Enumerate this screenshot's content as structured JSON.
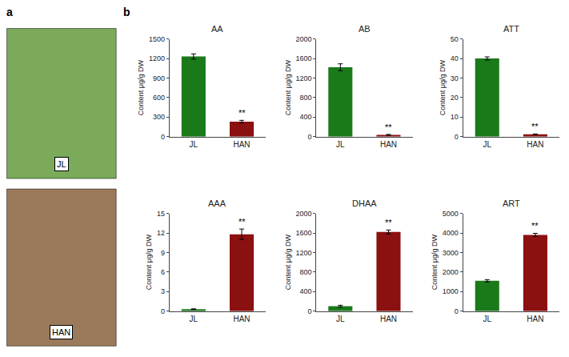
{
  "chart_data": [
    {
      "type": "bar",
      "title": "AA",
      "categories": [
        "JL",
        "HAN"
      ],
      "values": [
        1230,
        230
      ],
      "errors": [
        40,
        20
      ],
      "colors": [
        "#1a7a1a",
        "#8b1010"
      ],
      "ylabel": "Content μg/g DW",
      "ylim": [
        0,
        1500
      ],
      "yticks": [
        0,
        300,
        600,
        900,
        1200,
        1500
      ],
      "grid": false,
      "annotations": [
        {
          "x": "HAN",
          "text": "**"
        }
      ]
    },
    {
      "type": "bar",
      "title": "AB",
      "categories": [
        "JL",
        "HAN"
      ],
      "values": [
        1420,
        35
      ],
      "errors": [
        70,
        10
      ],
      "colors": [
        "#1a7a1a",
        "#8b1010"
      ],
      "ylabel": "Content μg/g DW",
      "ylim": [
        0,
        2000
      ],
      "yticks": [
        0,
        400,
        800,
        1200,
        1600,
        2000
      ],
      "grid": false,
      "annotations": [
        {
          "x": "HAN",
          "text": "**"
        }
      ]
    },
    {
      "type": "bar",
      "title": "ATT",
      "categories": [
        "JL",
        "HAN"
      ],
      "values": [
        40,
        1.2
      ],
      "errors": [
        0.8,
        0.15
      ],
      "colors": [
        "#1a7a1a",
        "#8b1010"
      ],
      "ylabel": "Content μg/g DW",
      "ylim": [
        0,
        50
      ],
      "yticks": [
        0,
        10,
        20,
        30,
        40,
        50
      ],
      "grid": false,
      "annotations": [
        {
          "x": "HAN",
          "text": "**"
        }
      ]
    },
    {
      "type": "bar",
      "title": "AAA",
      "categories": [
        "JL",
        "HAN"
      ],
      "values": [
        0.3,
        11.8
      ],
      "errors": [
        0.05,
        0.8
      ],
      "colors": [
        "#1a7a1a",
        "#8b1010"
      ],
      "ylabel": "Content μg/g DW",
      "ylim": [
        0,
        15
      ],
      "yticks": [
        0,
        3,
        6,
        9,
        12,
        15
      ],
      "grid": false,
      "annotations": [
        {
          "x": "HAN",
          "text": "**"
        }
      ]
    },
    {
      "type": "bar",
      "title": "DHAA",
      "categories": [
        "JL",
        "HAN"
      ],
      "values": [
        100,
        1620
      ],
      "errors": [
        20,
        40
      ],
      "colors": [
        "#1a7a1a",
        "#8b1010"
      ],
      "ylabel": "Content μg/g DW",
      "ylim": [
        0,
        2000
      ],
      "yticks": [
        0,
        400,
        800,
        1200,
        1600,
        2000
      ],
      "grid": false,
      "annotations": [
        {
          "x": "HAN",
          "text": "**"
        }
      ]
    },
    {
      "type": "bar",
      "title": "ART",
      "categories": [
        "JL",
        "HAN"
      ],
      "values": [
        1550,
        3900
      ],
      "errors": [
        60,
        80
      ],
      "colors": [
        "#1a7a1a",
        "#8b1010"
      ],
      "ylabel": "Content μg/g DW",
      "ylim": [
        0,
        5000
      ],
      "yticks": [
        0,
        1000,
        2000,
        3000,
        4000,
        5000
      ],
      "grid": false,
      "annotations": [
        {
          "x": "HAN",
          "text": "**"
        }
      ]
    }
  ],
  "annotations": [
    {
      "text": "a"
    },
    {
      "text": "b"
    },
    {
      "text": "JL",
      "color": "#7aaa5a"
    },
    {
      "text": "HAN",
      "color": "#9a7a5a"
    }
  ]
}
